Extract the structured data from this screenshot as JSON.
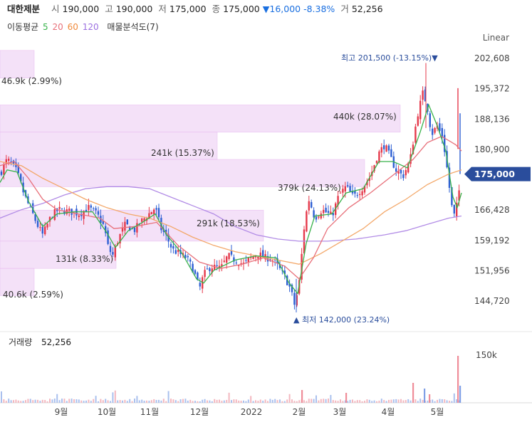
{
  "header": {
    "name": "대한제분",
    "open_label": "시",
    "open": "190,000",
    "high_label": "고",
    "high": "190,000",
    "low_label": "저",
    "low": "175,000",
    "close_label": "종",
    "close": "175,000",
    "change": "▼16,000",
    "change_pct": "-8.38%",
    "volume_label": "거",
    "volume": "52,256"
  },
  "ma_legend": {
    "label": "이동평균",
    "p5": "5",
    "p20": "20",
    "p60": "60",
    "p120": "120",
    "overlay": "매물분석도(7)"
  },
  "scale_mode": "Linear",
  "colors": {
    "up": "#e5394b",
    "down": "#2d5fd3",
    "ma5": "#38b24a",
    "ma20": "#e8707a",
    "ma60": "#f3a86a",
    "ma120": "#b28ce6",
    "profile": "#f3dcf7",
    "accent": "#2a4d9c"
  },
  "chart_data": {
    "type": "candlestick",
    "y_axis_ticks": [
      "202,608",
      "195,372",
      "188,136",
      "180,900",
      "166,428",
      "159,192",
      "151,956",
      "144,720"
    ],
    "y_tick_values": [
      202608,
      195372,
      188136,
      180900,
      166428,
      159192,
      151956,
      144720
    ],
    "ylim": [
      140000,
      207000
    ],
    "current_price": "175,000",
    "x_axis_ticks": [
      "9월",
      "10월",
      "11월",
      "12월",
      "2022",
      "2월",
      "3월",
      "4월",
      "5월"
    ],
    "high_label": "최고 201,500 (-13.15%)▼",
    "low_label": "▲ 최저 142,000 (23.24%)",
    "volume_label": "거래량",
    "volume_value": "52,256",
    "volume_tick": "150k",
    "volume_profile": [
      {
        "price_low": 197900,
        "price_high": 204500,
        "label": "46.9k (2.99%)"
      },
      {
        "price_low": 185000,
        "price_high": 191500,
        "label": "440k (28.07%)"
      },
      {
        "price_low": 178500,
        "price_high": 185000,
        "label": "241k (15.37%)"
      },
      {
        "price_low": 172000,
        "price_high": 178500,
        "label": "379k (24.13%)"
      },
      {
        "price_low": 159000,
        "price_high": 166400,
        "label": "291k (18.53%)"
      },
      {
        "price_low": 152500,
        "price_high": 159000,
        "label": "131k (8.33%)"
      },
      {
        "price_low": 146000,
        "price_high": 152500,
        "label": "40.6k (2.59%)"
      }
    ],
    "close_path": [
      [
        0,
        175000
      ],
      [
        10,
        178500
      ],
      [
        18,
        177000
      ],
      [
        24,
        175500
      ],
      [
        34,
        170000
      ],
      [
        46,
        165500
      ],
      [
        52,
        163000
      ],
      [
        60,
        160500
      ],
      [
        72,
        165000
      ],
      [
        82,
        166500
      ],
      [
        100,
        166000
      ],
      [
        112,
        165500
      ],
      [
        124,
        167000
      ],
      [
        136,
        165500
      ],
      [
        146,
        162500
      ],
      [
        152,
        157500
      ],
      [
        158,
        155500
      ],
      [
        166,
        159500
      ],
      [
        176,
        163000
      ],
      [
        188,
        161500
      ],
      [
        200,
        164000
      ],
      [
        212,
        166000
      ],
      [
        218,
        167000
      ],
      [
        226,
        162000
      ],
      [
        234,
        160000
      ],
      [
        242,
        157000
      ],
      [
        252,
        156000
      ],
      [
        262,
        155000
      ],
      [
        272,
        152000
      ],
      [
        280,
        147500
      ],
      [
        286,
        151000
      ],
      [
        296,
        153000
      ],
      [
        310,
        152500
      ],
      [
        320,
        155500
      ],
      [
        330,
        154500
      ],
      [
        342,
        153500
      ],
      [
        352,
        155000
      ],
      [
        362,
        156000
      ],
      [
        372,
        155000
      ],
      [
        380,
        155000
      ],
      [
        390,
        153000
      ],
      [
        400,
        150500
      ],
      [
        408,
        147500
      ],
      [
        414,
        143500
      ],
      [
        420,
        149000
      ],
      [
        428,
        164000
      ],
      [
        434,
        169000
      ],
      [
        442,
        164500
      ],
      [
        452,
        166500
      ],
      [
        466,
        165000
      ],
      [
        476,
        170000
      ],
      [
        486,
        172000
      ],
      [
        496,
        169500
      ],
      [
        508,
        171500
      ],
      [
        520,
        174500
      ],
      [
        530,
        179500
      ],
      [
        540,
        182000
      ],
      [
        548,
        179000
      ],
      [
        556,
        176000
      ],
      [
        566,
        174500
      ],
      [
        576,
        178500
      ],
      [
        586,
        189000
      ],
      [
        594,
        194500
      ],
      [
        600,
        191000
      ],
      [
        606,
        184500
      ],
      [
        614,
        186500
      ],
      [
        622,
        183500
      ],
      [
        628,
        176000
      ],
      [
        634,
        167500
      ],
      [
        638,
        165000
      ],
      [
        642,
        168000
      ],
      [
        648,
        175000
      ]
    ],
    "ma5_path": [
      [
        0,
        173000
      ],
      [
        10,
        176000
      ],
      [
        24,
        175500
      ],
      [
        40,
        168500
      ],
      [
        60,
        162500
      ],
      [
        80,
        165500
      ],
      [
        104,
        166000
      ],
      [
        130,
        166000
      ],
      [
        150,
        161000
      ],
      [
        162,
        157500
      ],
      [
        180,
        161500
      ],
      [
        200,
        163500
      ],
      [
        218,
        165500
      ],
      [
        234,
        160500
      ],
      [
        256,
        156000
      ],
      [
        276,
        150000
      ],
      [
        286,
        149000
      ],
      [
        300,
        152000
      ],
      [
        330,
        154500
      ],
      [
        360,
        155500
      ],
      [
        388,
        155000
      ],
      [
        406,
        149000
      ],
      [
        418,
        146500
      ],
      [
        430,
        158500
      ],
      [
        442,
        165000
      ],
      [
        466,
        165500
      ],
      [
        486,
        170500
      ],
      [
        510,
        171500
      ],
      [
        532,
        178000
      ],
      [
        552,
        178000
      ],
      [
        572,
        176500
      ],
      [
        590,
        185000
      ],
      [
        602,
        191500
      ],
      [
        614,
        186500
      ],
      [
        626,
        180500
      ],
      [
        636,
        169500
      ],
      [
        642,
        167000
      ],
      [
        648,
        170500
      ]
    ],
    "ma20_path": [
      [
        0,
        177000
      ],
      [
        20,
        178000
      ],
      [
        40,
        174000
      ],
      [
        60,
        169000
      ],
      [
        80,
        166500
      ],
      [
        110,
        165500
      ],
      [
        140,
        164500
      ],
      [
        160,
        162000
      ],
      [
        190,
        162500
      ],
      [
        220,
        163500
      ],
      [
        250,
        158000
      ],
      [
        280,
        154000
      ],
      [
        310,
        152500
      ],
      [
        340,
        153500
      ],
      [
        370,
        155000
      ],
      [
        400,
        153000
      ],
      [
        420,
        150000
      ],
      [
        440,
        155000
      ],
      [
        460,
        162000
      ],
      [
        490,
        167000
      ],
      [
        520,
        170500
      ],
      [
        550,
        174500
      ],
      [
        580,
        178500
      ],
      [
        600,
        182500
      ],
      [
        620,
        184000
      ],
      [
        640,
        182000
      ],
      [
        648,
        180500
      ]
    ],
    "ma60_path": [
      [
        0,
        178000
      ],
      [
        30,
        177000
      ],
      [
        60,
        174000
      ],
      [
        90,
        171500
      ],
      [
        120,
        169000
      ],
      [
        150,
        167000
      ],
      [
        180,
        165500
      ],
      [
        210,
        164500
      ],
      [
        240,
        162500
      ],
      [
        270,
        160000
      ],
      [
        300,
        158000
      ],
      [
        330,
        156500
      ],
      [
        360,
        155500
      ],
      [
        390,
        154500
      ],
      [
        420,
        153500
      ],
      [
        450,
        156000
      ],
      [
        480,
        159000
      ],
      [
        510,
        162000
      ],
      [
        540,
        166000
      ],
      [
        570,
        169000
      ],
      [
        600,
        172500
      ],
      [
        630,
        175000
      ],
      [
        648,
        176000
      ]
    ],
    "ma120_path": [
      [
        0,
        164500
      ],
      [
        30,
        166500
      ],
      [
        60,
        168000
      ],
      [
        90,
        170000
      ],
      [
        120,
        171500
      ],
      [
        150,
        172000
      ],
      [
        180,
        172000
      ],
      [
        210,
        171500
      ],
      [
        240,
        169500
      ],
      [
        270,
        167500
      ],
      [
        300,
        165500
      ],
      [
        330,
        162500
      ],
      [
        360,
        160500
      ],
      [
        390,
        159500
      ],
      [
        420,
        159000
      ],
      [
        460,
        159000
      ],
      [
        500,
        159500
      ],
      [
        540,
        160500
      ],
      [
        570,
        161500
      ],
      [
        600,
        163000
      ],
      [
        630,
        164500
      ],
      [
        648,
        165000
      ]
    ]
  }
}
